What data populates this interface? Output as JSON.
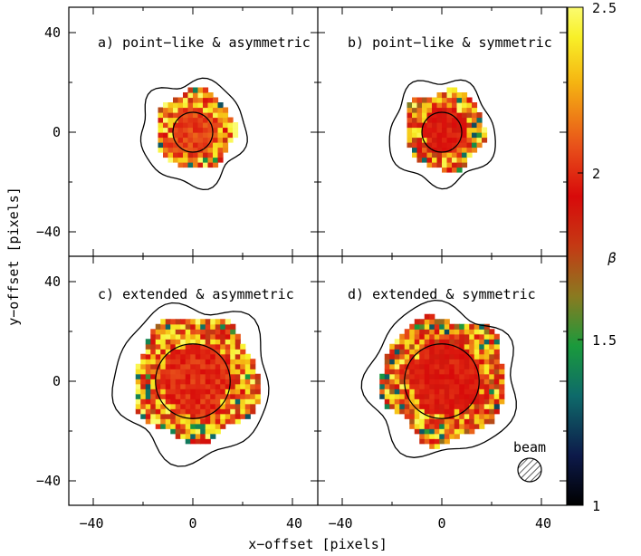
{
  "chart_data": {
    "type": "heatmap",
    "xlabel": "x−offset [pixels]",
    "ylabel": "y−offset [pixels]",
    "xlim": [
      -50,
      50
    ],
    "ylim": [
      -50,
      50
    ],
    "xticks": [
      "−40",
      "0",
      "40"
    ],
    "yticks": [
      "40",
      "0",
      "−40"
    ],
    "colorbar": {
      "label": "β",
      "range": [
        1,
        2.5
      ],
      "ticks": [
        "2.5",
        "2",
        "1.5",
        "1"
      ],
      "tick_values": [
        2.5,
        2,
        1.5,
        1
      ],
      "colors": [
        "#000000",
        "#0d1a4a",
        "#0e6a6a",
        "#1a9a3c",
        "#8a7a20",
        "#c43a14",
        "#d80a0a",
        "#e8501a",
        "#f5b512",
        "#f8f028",
        "#fbfb70"
      ]
    },
    "panels": [
      {
        "title": "a) point−like & asymmetric",
        "base_value": 2.05,
        "core_radius": 8,
        "blob_radius": 16,
        "contour_radius": 21
      },
      {
        "title": "b) point−like & symmetric",
        "base_value": 1.95,
        "core_radius": 8,
        "blob_radius": 16,
        "contour_radius": 21
      },
      {
        "title": "c) extended & asymmetric",
        "base_value": 2.0,
        "core_radius": 15,
        "blob_radius": 25,
        "contour_radius": 31
      },
      {
        "title": "d) extended & symmetric",
        "base_value": 1.95,
        "core_radius": 15,
        "blob_radius": 25,
        "contour_radius": 30
      }
    ],
    "beam_label": "beam",
    "grid": false
  }
}
